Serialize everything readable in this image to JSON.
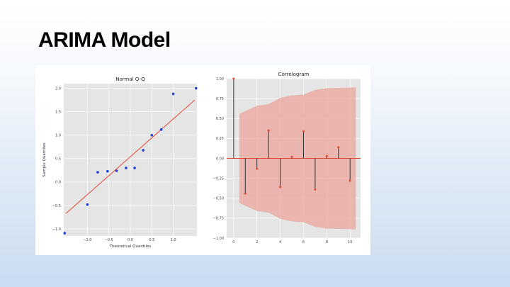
{
  "slide": {
    "title": "ARIMA Model"
  },
  "chart_data": [
    {
      "type": "scatter",
      "title": "Normal Q-Q",
      "xlabel": "Theoretical Quantiles",
      "ylabel": "Sample Quantiles",
      "xlim": [
        -1.55,
        1.55
      ],
      "ylim": [
        -1.15,
        2.1
      ],
      "xticks": [
        -1.0,
        -0.5,
        0.0,
        0.5,
        1.0
      ],
      "yticks": [
        -1.0,
        -0.5,
        0.0,
        0.5,
        1.0,
        1.5,
        2.0
      ],
      "xtick_labels": [
        "−1.0",
        "−0.5",
        "0.0",
        "0.5",
        "1.0"
      ],
      "ytick_labels": [
        "−1.0",
        "−0.5",
        "0.0",
        "0.5",
        "1.0",
        "1.5",
        "2.0"
      ],
      "grid": true,
      "points": [
        {
          "x": -1.53,
          "y": -1.09
        },
        {
          "x": -1.0,
          "y": -0.48
        },
        {
          "x": -0.76,
          "y": 0.21
        },
        {
          "x": -0.53,
          "y": 0.23
        },
        {
          "x": -0.32,
          "y": 0.24
        },
        {
          "x": -0.1,
          "y": 0.3
        },
        {
          "x": 0.1,
          "y": 0.3
        },
        {
          "x": 0.3,
          "y": 0.68
        },
        {
          "x": 0.5,
          "y": 1.0
        },
        {
          "x": 0.72,
          "y": 1.12
        },
        {
          "x": 1.0,
          "y": 1.88
        },
        {
          "x": 1.53,
          "y": 2.0
        }
      ],
      "ref_line": [
        {
          "x": -1.5,
          "y": -0.67
        },
        {
          "x": 1.5,
          "y": 1.75
        }
      ],
      "point_color": "#1f3fd6",
      "line_color": "#e24a33"
    },
    {
      "type": "bar",
      "title": "Correlogram",
      "xlim": [
        -0.6,
        10.9
      ],
      "ylim": [
        -1.0,
        1.0
      ],
      "xticks": [
        0,
        2,
        4,
        6,
        8,
        10
      ],
      "yticks": [
        -1.0,
        -0.75,
        -0.5,
        -0.25,
        0.0,
        0.25,
        0.5,
        0.75,
        1.0
      ],
      "xtick_labels": [
        "0",
        "2",
        "4",
        "6",
        "8",
        "10"
      ],
      "ytick_labels": [
        "−1.00",
        "−0.75",
        "−0.50",
        "−0.25",
        "0.00",
        "0.25",
        "0.50",
        "0.75",
        "1.00"
      ],
      "grid": true,
      "lags": [
        0,
        1,
        2,
        3,
        4,
        5,
        6,
        7,
        8,
        9,
        10
      ],
      "values": [
        1.0,
        -0.44,
        -0.13,
        0.35,
        -0.36,
        0.02,
        0.34,
        -0.39,
        0.03,
        0.14,
        -0.28
      ],
      "confidence_band": [
        {
          "x": 0.5,
          "upper": 0.56
        },
        {
          "x": 2,
          "upper": 0.66
        },
        {
          "x": 3,
          "upper": 0.68
        },
        {
          "x": 4,
          "upper": 0.76
        },
        {
          "x": 5,
          "upper": 0.79
        },
        {
          "x": 6,
          "upper": 0.8
        },
        {
          "x": 7,
          "upper": 0.86
        },
        {
          "x": 8,
          "upper": 0.88
        },
        {
          "x": 10.5,
          "upper": 0.89
        }
      ],
      "stem_color": "#333333",
      "marker_color": "#e24a33",
      "band_color": "#e9a49b"
    }
  ]
}
